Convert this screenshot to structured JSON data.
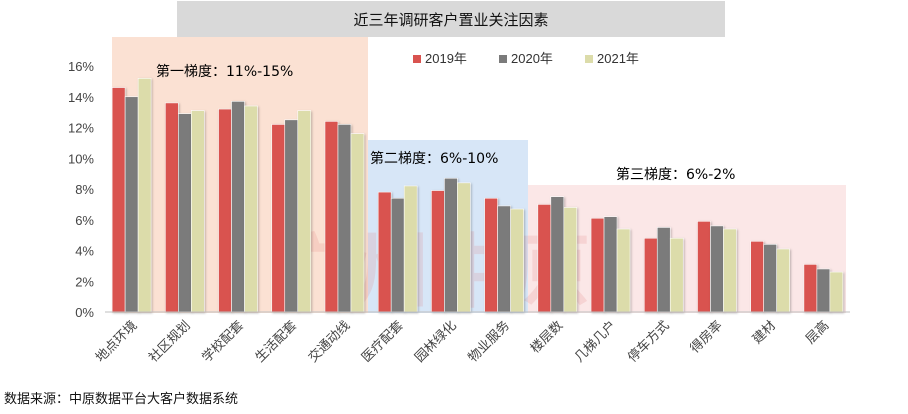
{
  "title": "近三年调研客户置业关注因素",
  "source": "数据来源：中原数据平台大客户数据系统",
  "watermark": "广州中原",
  "colors": {
    "2019": "#d9534f",
    "2020": "#7b7b7b",
    "2021": "#dcdcaa",
    "tier1_bg": "#fbe1d3",
    "tier2_bg": "#d7e6f7",
    "tier3_bg": "#fbe7e7"
  },
  "tiers": [
    {
      "label": "第一梯度：11%-15%"
    },
    {
      "label": "第二梯度：6%-10%"
    },
    {
      "label": "第三梯度：6%-2%"
    }
  ],
  "chart_data": {
    "type": "bar",
    "title": "近三年调研客户置业关注因素",
    "categories": [
      "地点环境",
      "社区规划",
      "学校配套",
      "生活配套",
      "交通动线",
      "医疗配套",
      "园林绿化",
      "物业服务",
      "楼层数",
      "几梯几户",
      "停车方式",
      "得房率",
      "建材",
      "层高"
    ],
    "series": [
      {
        "name": "2019年",
        "values": [
          14.6,
          13.6,
          13.2,
          12.2,
          12.4,
          7.8,
          7.9,
          7.4,
          7.0,
          6.1,
          4.8,
          5.9,
          4.6,
          3.1
        ]
      },
      {
        "name": "2020年",
        "values": [
          14.0,
          12.9,
          13.7,
          12.5,
          12.2,
          7.4,
          8.7,
          6.9,
          7.5,
          6.2,
          5.5,
          5.6,
          4.4,
          2.8
        ]
      },
      {
        "name": "2021年",
        "values": [
          15.2,
          13.1,
          13.4,
          13.1,
          11.6,
          8.2,
          8.4,
          6.7,
          6.8,
          5.4,
          4.8,
          5.4,
          4.1,
          2.6
        ]
      }
    ],
    "yticks": [
      "0%",
      "2%",
      "4%",
      "6%",
      "8%",
      "10%",
      "12%",
      "14%",
      "16%"
    ],
    "ylim": [
      0,
      16
    ],
    "legend_position": "top-center",
    "grid": false
  }
}
